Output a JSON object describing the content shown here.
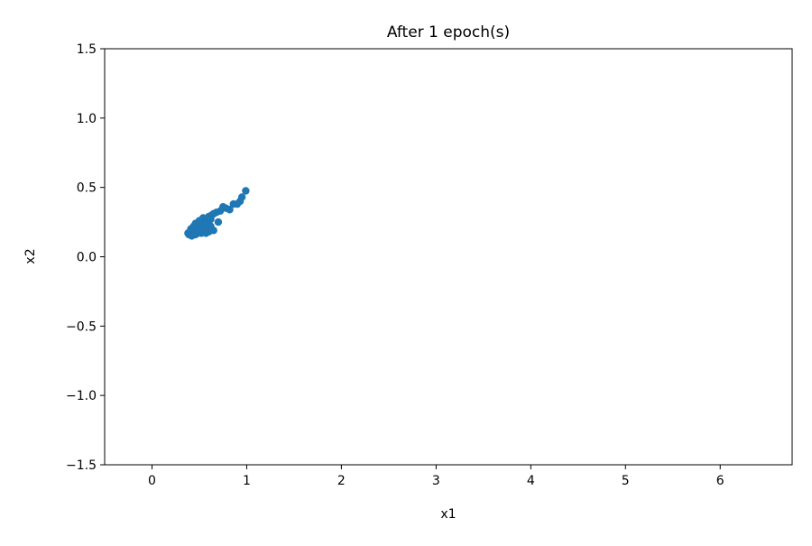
{
  "chart_data": {
    "type": "scatter",
    "title": "After 1 epoch(s)",
    "xlabel": "x1",
    "ylabel": "x2",
    "xlim": [
      -0.5,
      6.76
    ],
    "ylim": [
      -1.5,
      1.5
    ],
    "xticks": [
      0,
      1,
      2,
      3,
      4,
      5,
      6
    ],
    "xtick_labels": [
      "0",
      "1",
      "2",
      "3",
      "4",
      "5",
      "6"
    ],
    "yticks": [
      -1.5,
      -1.0,
      -0.5,
      0.0,
      0.5,
      1.0,
      1.5
    ],
    "ytick_labels": [
      "−1.5",
      "−1.0",
      "−0.5",
      "0.0",
      "0.5",
      "1.0",
      "1.5"
    ],
    "grid": false,
    "color": "#1f77b4",
    "points": [
      [
        0.99,
        0.475
      ],
      [
        0.95,
        0.43
      ],
      [
        0.93,
        0.4
      ],
      [
        0.9,
        0.38
      ],
      [
        0.86,
        0.38
      ],
      [
        0.82,
        0.34
      ],
      [
        0.78,
        0.35
      ],
      [
        0.75,
        0.36
      ],
      [
        0.72,
        0.33
      ],
      [
        0.7,
        0.25
      ],
      [
        0.68,
        0.32
      ],
      [
        0.65,
        0.31
      ],
      [
        0.65,
        0.19
      ],
      [
        0.63,
        0.3
      ],
      [
        0.62,
        0.22
      ],
      [
        0.6,
        0.29
      ],
      [
        0.6,
        0.18
      ],
      [
        0.58,
        0.27
      ],
      [
        0.57,
        0.21
      ],
      [
        0.56,
        0.25
      ],
      [
        0.55,
        0.18
      ],
      [
        0.54,
        0.28
      ],
      [
        0.53,
        0.22
      ],
      [
        0.52,
        0.17
      ],
      [
        0.51,
        0.25
      ],
      [
        0.5,
        0.2
      ],
      [
        0.49,
        0.23
      ],
      [
        0.48,
        0.17
      ],
      [
        0.47,
        0.21
      ],
      [
        0.46,
        0.24
      ],
      [
        0.45,
        0.19
      ],
      [
        0.44,
        0.16
      ],
      [
        0.43,
        0.21
      ],
      [
        0.42,
        0.18
      ],
      [
        0.41,
        0.2
      ],
      [
        0.4,
        0.17
      ],
      [
        0.39,
        0.16
      ],
      [
        0.38,
        0.17
      ],
      [
        0.44,
        0.22
      ],
      [
        0.5,
        0.26
      ],
      [
        0.55,
        0.23
      ],
      [
        0.58,
        0.24
      ],
      [
        0.48,
        0.19
      ],
      [
        0.53,
        0.19
      ],
      [
        0.62,
        0.27
      ],
      [
        0.46,
        0.16
      ],
      [
        0.57,
        0.17
      ],
      [
        0.42,
        0.15
      ]
    ]
  }
}
